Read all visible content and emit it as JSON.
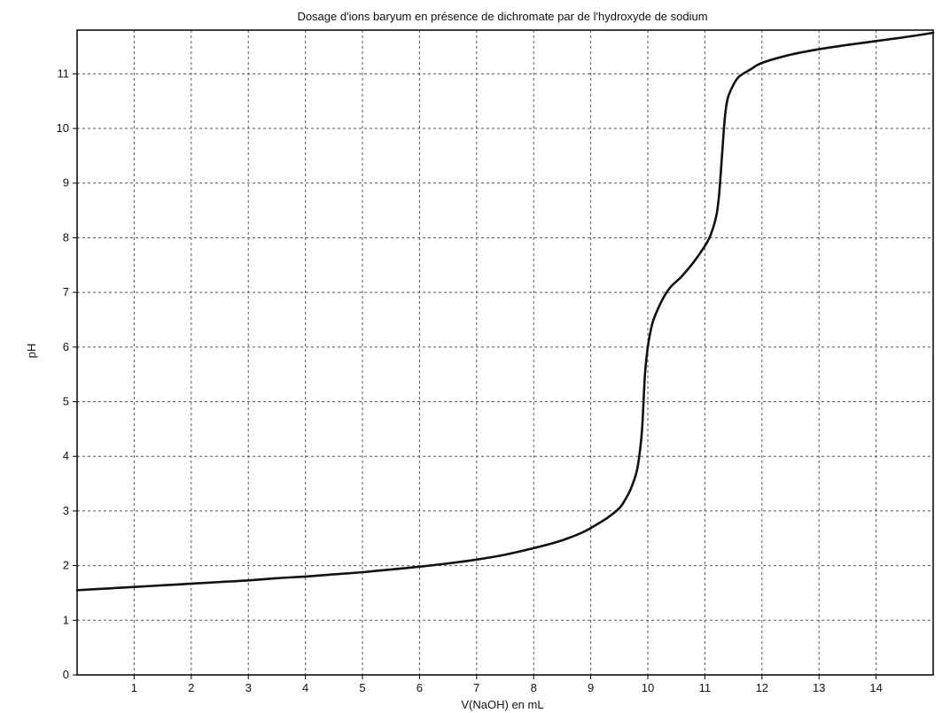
{
  "chart_data": {
    "type": "line",
    "title": "Dosage d'ions baryum en présence de dichromate par de l'hydroxyde de sodium",
    "xlabel": "V(NaOH) en mL",
    "ylabel": "pH",
    "xlim": [
      0,
      15
    ],
    "ylim": [
      0,
      11.8
    ],
    "x_ticks": [
      1,
      2,
      3,
      4,
      5,
      6,
      7,
      8,
      9,
      10,
      11,
      12,
      13,
      14
    ],
    "y_ticks": [
      0,
      1,
      2,
      3,
      4,
      5,
      6,
      7,
      8,
      9,
      10,
      11
    ],
    "grid": true,
    "colors": {
      "line": "#111111",
      "grid": "#555555",
      "axis": "#000000"
    },
    "series": [
      {
        "name": "",
        "x": [
          0,
          0.5,
          1,
          1.5,
          2,
          2.5,
          3,
          3.5,
          4,
          4.5,
          5,
          5.5,
          6,
          6.5,
          7,
          7.5,
          8,
          8.3,
          8.6,
          8.9,
          9.1,
          9.3,
          9.5,
          9.6,
          9.7,
          9.8,
          9.85,
          9.9,
          9.95,
          10,
          10.05,
          10.1,
          10.2,
          10.3,
          10.4,
          10.5,
          10.6,
          10.8,
          11,
          11.1,
          11.2,
          11.25,
          11.3,
          11.35,
          11.4,
          11.5,
          11.6,
          11.8,
          12,
          12.5,
          13,
          13.5,
          14,
          14.5,
          15
        ],
        "y": [
          1.55,
          1.58,
          1.61,
          1.64,
          1.67,
          1.7,
          1.73,
          1.77,
          1.8,
          1.84,
          1.88,
          1.93,
          1.98,
          2.04,
          2.11,
          2.2,
          2.32,
          2.4,
          2.5,
          2.63,
          2.75,
          2.88,
          3.05,
          3.2,
          3.4,
          3.7,
          4.0,
          4.5,
          5.5,
          6.0,
          6.3,
          6.5,
          6.75,
          6.95,
          7.1,
          7.2,
          7.3,
          7.55,
          7.85,
          8.05,
          8.4,
          8.8,
          9.5,
          10.2,
          10.55,
          10.8,
          10.95,
          11.08,
          11.2,
          11.35,
          11.45,
          11.53,
          11.6,
          11.67,
          11.75
        ]
      }
    ]
  }
}
